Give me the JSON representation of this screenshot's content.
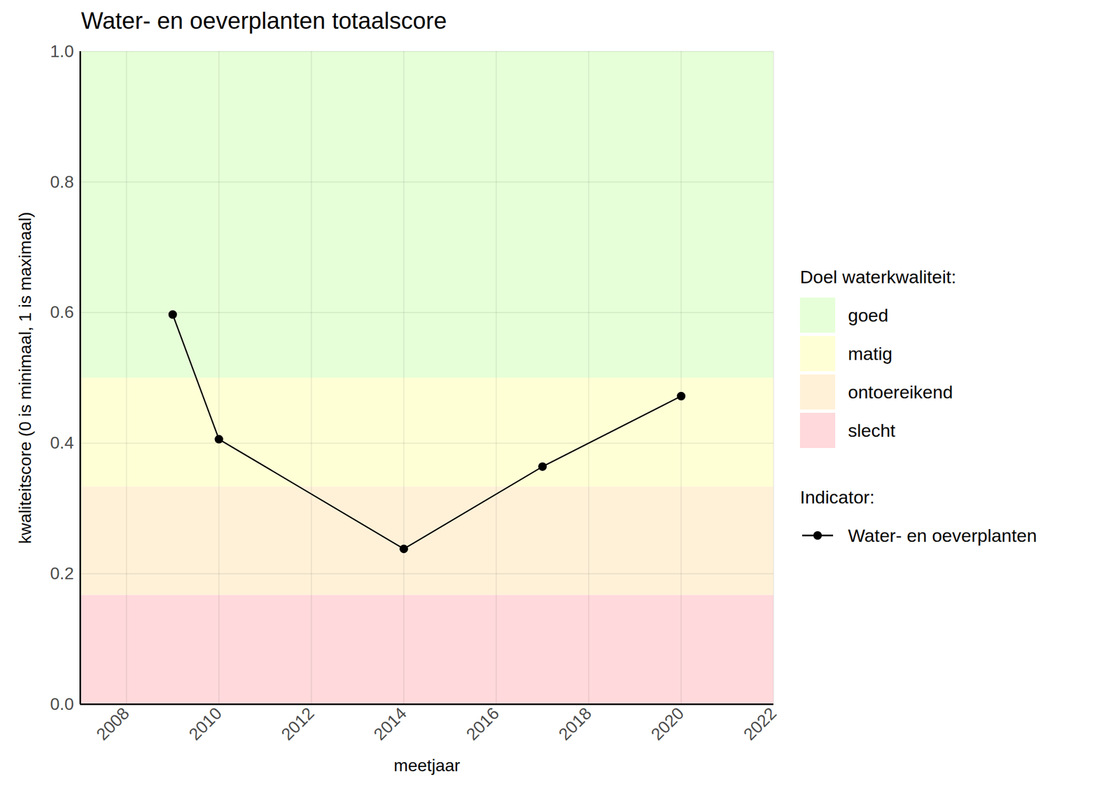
{
  "chart_data": {
    "type": "line",
    "title": "Water- en oeverplanten totaalscore",
    "x_label": "meetjaar",
    "y_label": "kwaliteitscore (0 is minimaal, 1 is maximaal)",
    "x": [
      2009,
      2010,
      2014,
      2017,
      2020
    ],
    "series": [
      {
        "name": "Water- en oeverplanten",
        "color": "#000000",
        "marker": "circle",
        "line_style": "solid",
        "values": [
          0.597,
          0.406,
          0.238,
          0.364,
          0.472
        ]
      }
    ],
    "xlim": [
      2007,
      2022
    ],
    "xticks": [
      2008,
      2010,
      2012,
      2014,
      2016,
      2018,
      2020,
      2022
    ],
    "ylim": [
      0,
      1
    ],
    "yticks": [
      {
        "value": 0,
        "label": "0.0"
      },
      0.2,
      0.4,
      0.6,
      0.8,
      {
        "value": 1,
        "label": "1.0"
      }
    ],
    "grid": true,
    "legend": "right",
    "legend_title": "Indicator:",
    "bands": {
      "title": "Doel waterkwaliteit:",
      "items": [
        {
          "name": "goed",
          "from": 0.5,
          "to": 1.0,
          "color": "#e6ffd8"
        },
        {
          "name": "matig",
          "from": 0.333,
          "to": 0.5,
          "color": "#ffffd6"
        },
        {
          "name": "ontoereikend",
          "from": 0.167,
          "to": 0.333,
          "color": "#fff1d8"
        },
        {
          "name": "slecht",
          "from": 0,
          "to": 0.167,
          "color": "#ffd9dc"
        }
      ]
    }
  }
}
